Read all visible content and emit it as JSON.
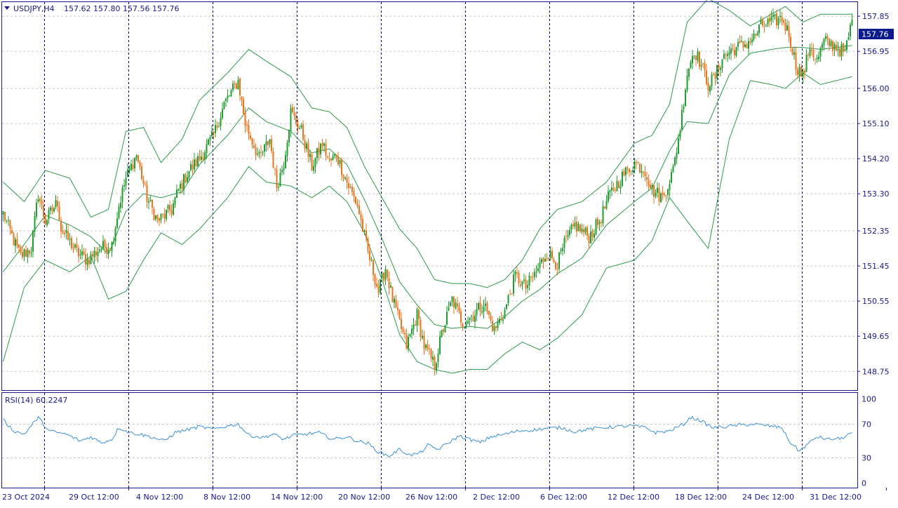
{
  "header": {
    "symbol_tf": "USDJPY,H4",
    "ohlc": "157.62 157.80 157.56 157.76",
    "menu_icon": "triangle-down-icon"
  },
  "colors": {
    "background": "#ffffff",
    "frame": "#1a1a8c",
    "text": "#1a1a8c",
    "bull": "#1f9e2e",
    "bear": "#e8741e",
    "bollinger": "#2e9a4a",
    "rsi": "#3a8fd8",
    "grid": "#c8c8c8",
    "separator": "#000080",
    "price_tag_bg": "#0b1a8c",
    "price_tag_text": "#ffffff"
  },
  "price_axis": {
    "labels": [
      "157.85",
      "156.95",
      "156.00",
      "155.10",
      "154.20",
      "153.30",
      "152.35",
      "151.45",
      "150.55",
      "149.65",
      "148.75"
    ],
    "range": [
      148.45,
      158.05
    ],
    "current": "157.76"
  },
  "time_axis": {
    "labels": [
      "23 Oct 2024",
      "29 Oct 12:00",
      "4 Nov 12:00",
      "8 Nov 12:00",
      "14 Nov 12:00",
      "20 Nov 12:00",
      "26 Nov 12:00",
      "2 Dec 12:00",
      "6 Dec 12:00",
      "12 Dec 12:00",
      "18 Dec 12:00",
      "24 Dec 12:00",
      "31 Dec 12:00"
    ]
  },
  "rsi": {
    "label": "RSI(14) 60.2247",
    "levels": [
      "100",
      "70",
      "30",
      "0"
    ],
    "level_values": [
      100,
      70,
      30,
      0
    ]
  },
  "chart_data": {
    "type": "candlestick",
    "title": "USDJPY,H4",
    "series": [
      {
        "name": "USDJPY,H4",
        "kind": "candles"
      },
      {
        "name": "Bollinger Bands",
        "kind": "bands"
      },
      {
        "name": "RSI(14)",
        "kind": "oscillator",
        "last_value": 60.2247
      }
    ],
    "price_anchors": [
      [
        0,
        152.8
      ],
      [
        6,
        152.1
      ],
      [
        10,
        151.7
      ],
      [
        16,
        151.9
      ],
      [
        20,
        153.3
      ],
      [
        24,
        152.6
      ],
      [
        31,
        153.1
      ],
      [
        33,
        152.4
      ],
      [
        42,
        151.8
      ],
      [
        48,
        151.6
      ],
      [
        55,
        151.9
      ],
      [
        62,
        152.0
      ],
      [
        66,
        153.0
      ],
      [
        70,
        153.7
      ],
      [
        76,
        154.3
      ],
      [
        82,
        153.2
      ],
      [
        88,
        152.6
      ],
      [
        96,
        152.9
      ],
      [
        100,
        153.4
      ],
      [
        106,
        153.9
      ],
      [
        112,
        154.2
      ],
      [
        120,
        154.8
      ],
      [
        126,
        155.6
      ],
      [
        134,
        156.2
      ],
      [
        138,
        155.1
      ],
      [
        146,
        154.2
      ],
      [
        152,
        154.7
      ],
      [
        156,
        153.5
      ],
      [
        160,
        154.1
      ],
      [
        164,
        155.4
      ],
      [
        170,
        154.9
      ],
      [
        176,
        154.0
      ],
      [
        182,
        154.6
      ],
      [
        186,
        154.1
      ],
      [
        190,
        154.3
      ],
      [
        196,
        153.6
      ],
      [
        202,
        153.0
      ],
      [
        208,
        151.8
      ],
      [
        214,
        150.8
      ],
      [
        218,
        151.4
      ],
      [
        222,
        150.6
      ],
      [
        226,
        150.0
      ],
      [
        230,
        149.4
      ],
      [
        236,
        150.2
      ],
      [
        240,
        149.4
      ],
      [
        246,
        148.9
      ],
      [
        250,
        149.7
      ],
      [
        256,
        150.6
      ],
      [
        262,
        150.0
      ],
      [
        268,
        150.2
      ],
      [
        274,
        150.5
      ],
      [
        280,
        149.8
      ],
      [
        286,
        150.3
      ],
      [
        292,
        151.2
      ],
      [
        298,
        150.9
      ],
      [
        304,
        151.3
      ],
      [
        310,
        151.8
      ],
      [
        316,
        151.5
      ],
      [
        320,
        152.0
      ],
      [
        326,
        152.5
      ],
      [
        334,
        152.2
      ],
      [
        340,
        152.6
      ],
      [
        346,
        153.3
      ],
      [
        354,
        153.8
      ],
      [
        360,
        154.1
      ],
      [
        366,
        153.9
      ],
      [
        370,
        153.4
      ],
      [
        376,
        153.2
      ],
      [
        382,
        153.9
      ],
      [
        386,
        155.0
      ],
      [
        390,
        156.4
      ],
      [
        394,
        157.0
      ],
      [
        398,
        156.6
      ],
      [
        402,
        156.1
      ],
      [
        406,
        156.3
      ],
      [
        410,
        156.8
      ],
      [
        416,
        157.0
      ],
      [
        422,
        157.1
      ],
      [
        428,
        157.3
      ],
      [
        432,
        157.6
      ],
      [
        438,
        157.7
      ],
      [
        444,
        157.8
      ],
      [
        448,
        157.4
      ],
      [
        452,
        156.6
      ],
      [
        456,
        156.3
      ],
      [
        460,
        157.1
      ],
      [
        464,
        156.7
      ],
      [
        468,
        157.2
      ],
      [
        474,
        157.1
      ],
      [
        480,
        156.9
      ],
      [
        484,
        157.76
      ]
    ],
    "bollinger": {
      "period": "",
      "upper_anchors": [
        [
          0,
          153.6
        ],
        [
          12,
          153.1
        ],
        [
          24,
          153.9
        ],
        [
          38,
          153.7
        ],
        [
          50,
          152.7
        ],
        [
          60,
          152.9
        ],
        [
          70,
          154.9
        ],
        [
          80,
          155.0
        ],
        [
          90,
          154.1
        ],
        [
          102,
          154.7
        ],
        [
          112,
          155.7
        ],
        [
          128,
          156.4
        ],
        [
          140,
          157.0
        ],
        [
          150,
          156.7
        ],
        [
          164,
          156.3
        ],
        [
          176,
          155.5
        ],
        [
          186,
          155.4
        ],
        [
          196,
          155.0
        ],
        [
          206,
          154.0
        ],
        [
          216,
          153.2
        ],
        [
          226,
          152.4
        ],
        [
          236,
          151.9
        ],
        [
          246,
          151.1
        ],
        [
          256,
          151.0
        ],
        [
          266,
          151.0
        ],
        [
          276,
          150.9
        ],
        [
          286,
          151.1
        ],
        [
          296,
          151.6
        ],
        [
          306,
          152.4
        ],
        [
          316,
          152.9
        ],
        [
          330,
          153.1
        ],
        [
          344,
          153.6
        ],
        [
          360,
          154.6
        ],
        [
          370,
          154.8
        ],
        [
          380,
          155.6
        ],
        [
          390,
          157.7
        ],
        [
          402,
          158.3
        ],
        [
          414,
          158.0
        ],
        [
          426,
          157.6
        ],
        [
          438,
          157.9
        ],
        [
          446,
          158.1
        ],
        [
          456,
          157.7
        ],
        [
          466,
          157.9
        ],
        [
          484,
          157.9
        ]
      ],
      "lower_anchors": [
        [
          0,
          149.0
        ],
        [
          12,
          150.9
        ],
        [
          24,
          151.6
        ],
        [
          38,
          151.3
        ],
        [
          50,
          151.7
        ],
        [
          60,
          150.6
        ],
        [
          70,
          150.8
        ],
        [
          80,
          151.6
        ],
        [
          90,
          152.3
        ],
        [
          102,
          152.0
        ],
        [
          112,
          152.4
        ],
        [
          128,
          153.2
        ],
        [
          140,
          154.0
        ],
        [
          150,
          153.6
        ],
        [
          164,
          153.5
        ],
        [
          176,
          153.2
        ],
        [
          186,
          153.5
        ],
        [
          196,
          153.1
        ],
        [
          206,
          152.3
        ],
        [
          216,
          151.1
        ],
        [
          226,
          149.7
        ],
        [
          236,
          149.0
        ],
        [
          246,
          148.8
        ],
        [
          256,
          148.7
        ],
        [
          266,
          148.8
        ],
        [
          276,
          148.8
        ],
        [
          286,
          149.2
        ],
        [
          296,
          149.5
        ],
        [
          306,
          149.3
        ],
        [
          316,
          149.6
        ],
        [
          330,
          150.2
        ],
        [
          344,
          151.4
        ],
        [
          360,
          151.6
        ],
        [
          370,
          152.1
        ],
        [
          380,
          153.2
        ],
        [
          390,
          152.6
        ],
        [
          402,
          151.9
        ],
        [
          414,
          154.7
        ],
        [
          426,
          156.2
        ],
        [
          438,
          156.1
        ],
        [
          446,
          156.0
        ],
        [
          456,
          156.4
        ],
        [
          466,
          156.1
        ],
        [
          484,
          156.3
        ]
      ]
    },
    "rsi_anchors": [
      [
        0,
        75
      ],
      [
        6,
        62
      ],
      [
        12,
        58
      ],
      [
        20,
        78
      ],
      [
        26,
        62
      ],
      [
        36,
        58
      ],
      [
        44,
        50
      ],
      [
        50,
        55
      ],
      [
        56,
        48
      ],
      [
        62,
        52
      ],
      [
        66,
        66
      ],
      [
        72,
        60
      ],
      [
        78,
        58
      ],
      [
        84,
        55
      ],
      [
        92,
        50
      ],
      [
        98,
        60
      ],
      [
        104,
        63
      ],
      [
        112,
        67
      ],
      [
        120,
        64
      ],
      [
        128,
        68
      ],
      [
        134,
        70
      ],
      [
        140,
        57
      ],
      [
        148,
        54
      ],
      [
        154,
        58
      ],
      [
        160,
        52
      ],
      [
        166,
        57
      ],
      [
        172,
        58
      ],
      [
        180,
        60
      ],
      [
        188,
        52
      ],
      [
        196,
        55
      ],
      [
        202,
        50
      ],
      [
        208,
        47
      ],
      [
        214,
        37
      ],
      [
        220,
        32
      ],
      [
        226,
        40
      ],
      [
        232,
        33
      ],
      [
        238,
        36
      ],
      [
        242,
        45
      ],
      [
        248,
        40
      ],
      [
        254,
        48
      ],
      [
        260,
        56
      ],
      [
        266,
        52
      ],
      [
        272,
        48
      ],
      [
        278,
        55
      ],
      [
        286,
        58
      ],
      [
        294,
        62
      ],
      [
        302,
        63
      ],
      [
        310,
        65
      ],
      [
        318,
        66
      ],
      [
        326,
        61
      ],
      [
        334,
        64
      ],
      [
        342,
        66
      ],
      [
        350,
        67
      ],
      [
        358,
        68
      ],
      [
        366,
        66
      ],
      [
        372,
        60
      ],
      [
        380,
        62
      ],
      [
        388,
        70
      ],
      [
        392,
        78
      ],
      [
        398,
        74
      ],
      [
        404,
        66
      ],
      [
        412,
        67
      ],
      [
        420,
        69
      ],
      [
        428,
        70
      ],
      [
        436,
        68
      ],
      [
        444,
        66
      ],
      [
        448,
        50
      ],
      [
        454,
        38
      ],
      [
        458,
        45
      ],
      [
        464,
        55
      ],
      [
        470,
        52
      ],
      [
        478,
        53
      ],
      [
        484,
        60.2
      ]
    ],
    "x_tick_labels": [
      "23 Oct 2024",
      "29 Oct 12:00",
      "4 Nov 12:00",
      "8 Nov 12:00",
      "14 Nov 12:00",
      "20 Nov 12:00",
      "26 Nov 12:00",
      "2 Dec 12:00",
      "6 Dec 12:00",
      "12 Dec 12:00",
      "18 Dec 12:00",
      "24 Dec 12:00",
      "31 Dec 12:00"
    ],
    "y_tick_labels": [
      "157.85",
      "156.95",
      "156.00",
      "155.10",
      "154.20",
      "153.30",
      "152.35",
      "151.45",
      "150.55",
      "149.65",
      "148.75"
    ],
    "ylim": [
      148.45,
      158.05
    ],
    "rsi_ylim": [
      0,
      100
    ],
    "last_close": 157.76,
    "grid": true,
    "session_separators": true
  }
}
